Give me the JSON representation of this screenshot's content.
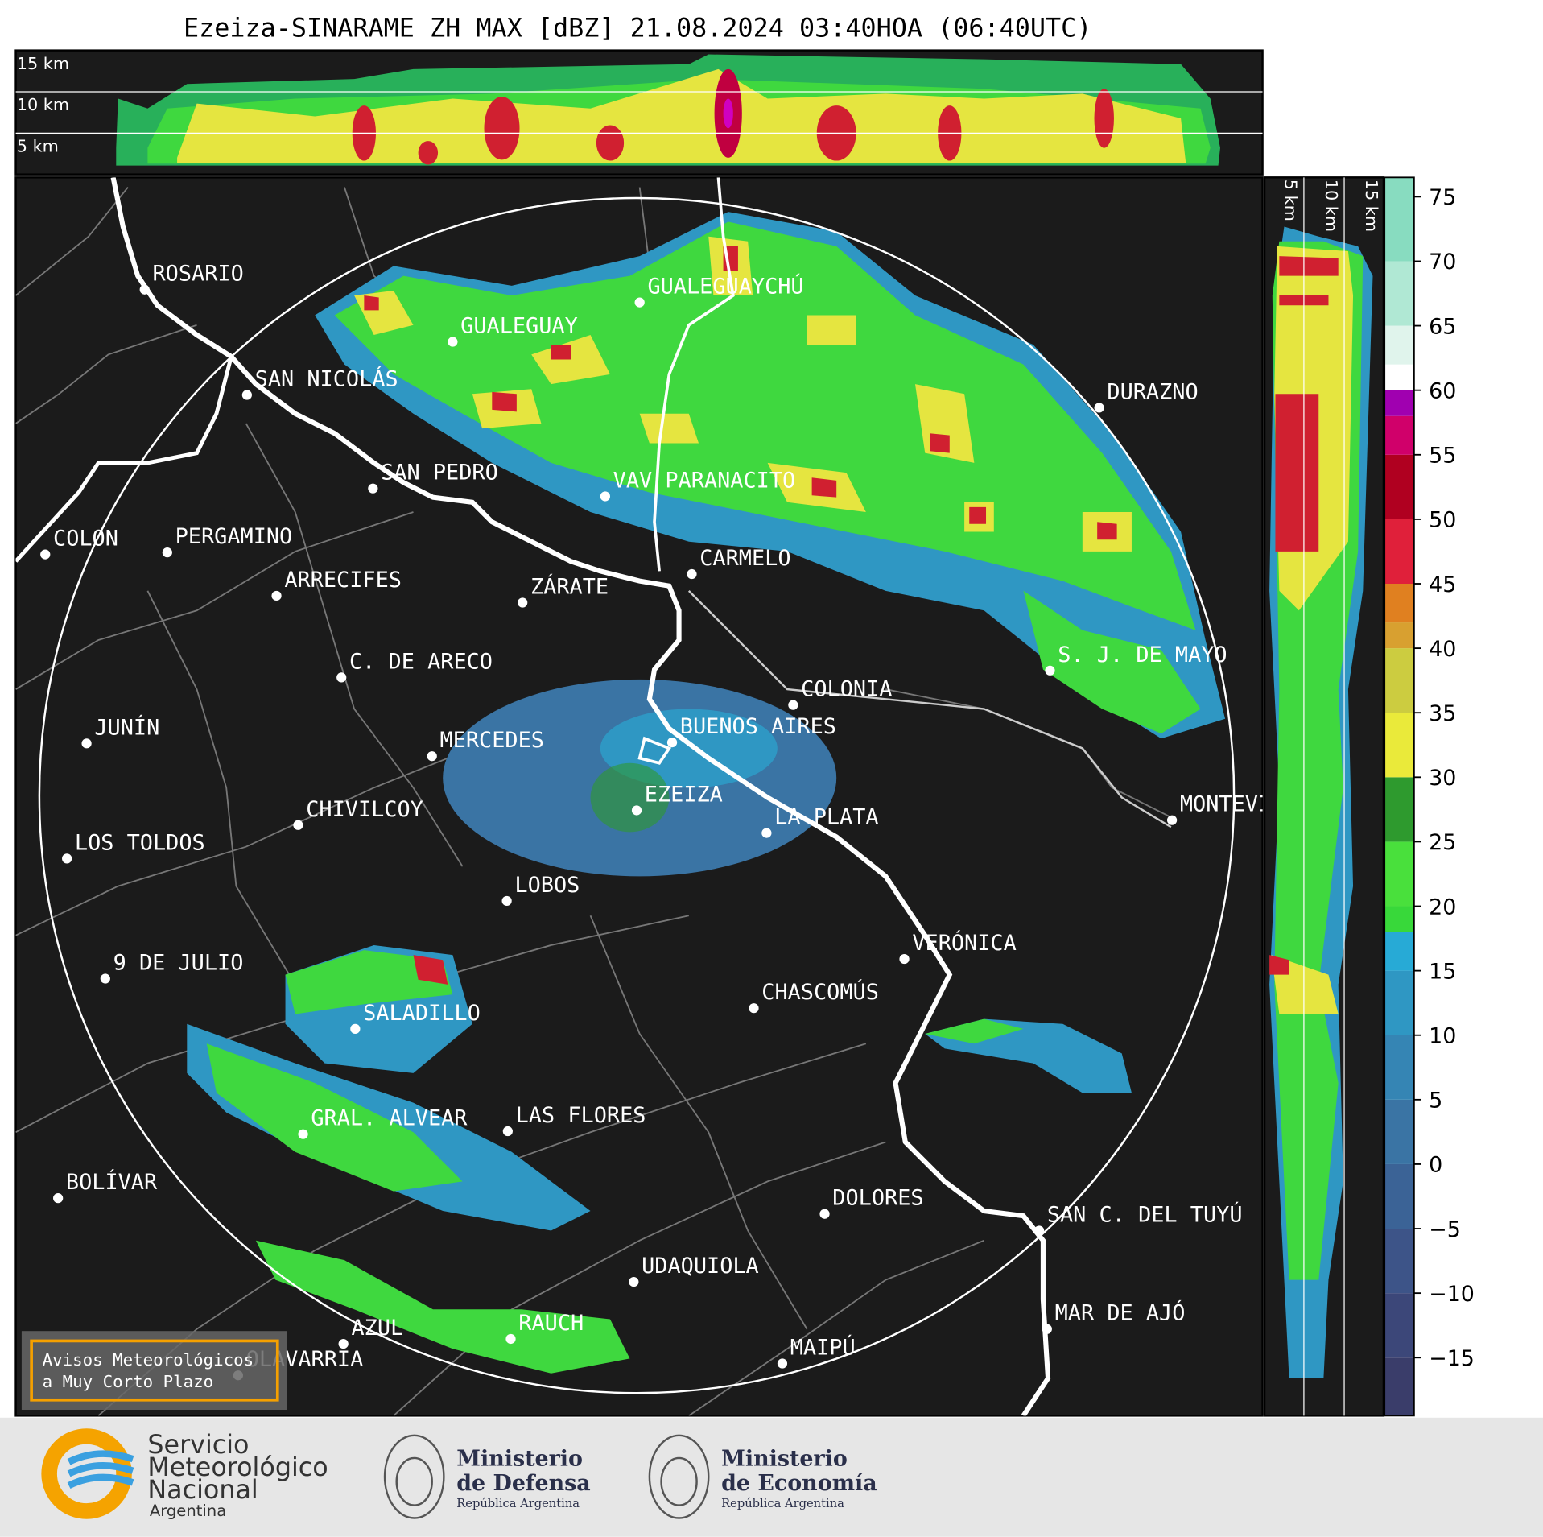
{
  "title": "Ezeiza-SINARAME ZH MAX [dBZ] 21.08.2024 03:40HOA (06:40UTC)",
  "height_labels": [
    "15 km",
    "10 km",
    "5 km"
  ],
  "cities": [
    "ROSARIO",
    "GUALEGUAYCHÚ",
    "GUALEGUAY",
    "SAN NICOLÁS",
    "DURAZNO",
    "SAN PEDRO",
    "VAV PARANACITO",
    "COLON",
    "PERGAMINO",
    "CARMELO",
    "ARRECIFES",
    "ZÁRATE",
    "C. DE ARECO",
    "S. J. DE MAYO",
    "COLONIA",
    "BUENOS AIRES",
    "JUNÍN",
    "MERCEDES",
    "MONTEVIDEO",
    "EZEIZA",
    "CHIVILCOY",
    "LA PLATA",
    "LOS TOLDOS",
    "LOBOS",
    "VERÓNICA",
    "9 DE JULIO",
    "CHASCOMÚS",
    "SALADILLO",
    "GRAL. ALVEAR",
    "LAS FLORES",
    "BOLÍVAR",
    "DOLORES",
    "SAN C. DEL TUYÚ",
    "UDAQUIOLA",
    "MAR DE AJÓ",
    "AZUL",
    "RAUCH",
    "OLAVARRÍA",
    "MAIPÚ"
  ],
  "colorbar": {
    "lim": [
      -19.5,
      76.5
    ],
    "ticks": [
      75,
      70,
      65,
      60,
      55,
      50,
      45,
      40,
      35,
      30,
      25,
      20,
      15,
      10,
      5,
      0,
      {
        "value": -5,
        "label": "−5"
      },
      {
        "value": -10,
        "label": "−10"
      },
      {
        "value": -15,
        "label": "−15"
      }
    ],
    "edges": [
      -20,
      -15,
      -10,
      -5,
      0,
      5,
      10,
      15,
      18,
      20,
      25,
      30,
      35,
      40,
      42,
      45,
      50,
      55,
      58,
      60,
      62,
      65,
      70,
      80
    ],
    "colors": [
      "#3a3d6a",
      "#3c4779",
      "#3d5488",
      "#3b6396",
      "#3a74a4",
      "#3585b4",
      "#2f97c3",
      "#27aad6",
      "#38d83a",
      "#49e03c",
      "#2e9a2e",
      "#eaea3a",
      "#cccc40",
      "#d8a030",
      "#e08020",
      "#e0203a",
      "#b00020",
      "#d0006a",
      "#a000b0",
      "#ffffff",
      "#e0f4ec",
      "#b0e8d4",
      "#88dcc0"
    ]
  },
  "notice": [
    "Avisos Meteorológicos",
    "a Muy Corto Plazo"
  ],
  "logos": {
    "smn": [
      "Servicio",
      "Meteorológico",
      "Nacional",
      "Argentina"
    ],
    "defensa": [
      "Ministerio",
      "de Defensa",
      "República Argentina"
    ],
    "economia": [
      "Ministerio",
      "de Economía",
      "República Argentina"
    ]
  }
}
